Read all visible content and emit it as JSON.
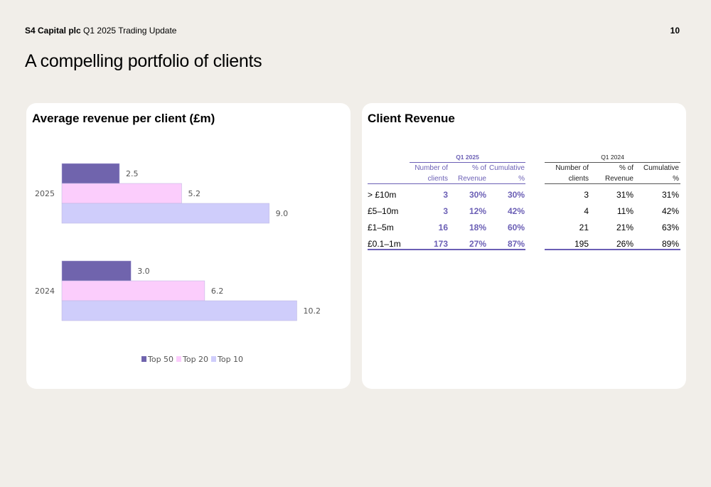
{
  "header": {
    "company": "S4 Capital plc",
    "subtitle": "Q1 2025 Trading Update",
    "page_number": "10"
  },
  "page_title": "A compelling portfolio of clients",
  "left_card": {
    "title": "Average revenue per client (£m)"
  },
  "right_card": {
    "title": "Client Revenue"
  },
  "colors": {
    "top50": "#7064ad",
    "top20": "#fbcdfc",
    "top10": "#cfcdfb",
    "accent": "#6b5fb5"
  },
  "chart_data": {
    "type": "bar",
    "orientation": "horizontal",
    "categories": [
      "2025",
      "2024"
    ],
    "series": [
      {
        "name": "Top 50",
        "values": [
          2.5,
          3.0
        ],
        "labels": [
          "2.5",
          "3.0"
        ]
      },
      {
        "name": "Top 20",
        "values": [
          5.2,
          6.2
        ],
        "labels": [
          "5.2",
          "6.2"
        ]
      },
      {
        "name": "Top 10",
        "values": [
          9.0,
          10.2
        ],
        "labels": [
          "9.0",
          "10.2"
        ]
      }
    ],
    "title": "Average revenue per client (£m)",
    "legend_position": "bottom",
    "grid": false,
    "xlim": [
      0,
      12
    ]
  },
  "table": {
    "periods": [
      "Q1 2025",
      "Q1 2024"
    ],
    "column_headers": [
      [
        "Number of",
        "clients"
      ],
      [
        "% of",
        "Revenue"
      ],
      [
        "Cumulative",
        "%"
      ]
    ],
    "rows": [
      {
        "label": "> £10m",
        "q1_2025": [
          "3",
          "30%",
          "30%"
        ],
        "q1_2024": [
          "3",
          "31%",
          "31%"
        ]
      },
      {
        "label": "£5–10m",
        "q1_2025": [
          "3",
          "12%",
          "42%"
        ],
        "q1_2024": [
          "4",
          "11%",
          "42%"
        ]
      },
      {
        "label": "£1–5m",
        "q1_2025": [
          "16",
          "18%",
          "60%"
        ],
        "q1_2024": [
          "21",
          "21%",
          "63%"
        ]
      },
      {
        "label": "£0.1–1m",
        "q1_2025": [
          "173",
          "27%",
          "87%"
        ],
        "q1_2024": [
          "195",
          "26%",
          "89%"
        ]
      }
    ]
  }
}
